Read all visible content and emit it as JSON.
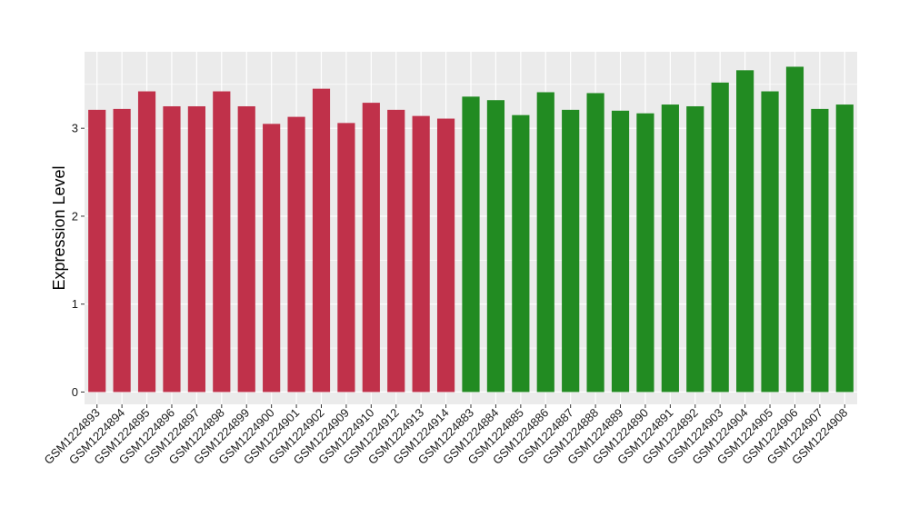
{
  "chart_data": {
    "type": "bar",
    "title": "",
    "xlabel": "",
    "ylabel": "Expression Level",
    "ylim": [
      -0.14,
      3.87
    ],
    "yticks": [
      0,
      1,
      2,
      3
    ],
    "grid": true,
    "legend": "none",
    "background_color": "#ebebeb",
    "grid_color": "#ffffff",
    "group_colors": {
      "red": "#c0314a",
      "green": "#228b22"
    },
    "categories": [
      "GSM1224893",
      "GSM1224894",
      "GSM1224895",
      "GSM1224896",
      "GSM1224897",
      "GSM1224898",
      "GSM1224899",
      "GSM1224900",
      "GSM1224901",
      "GSM1224902",
      "GSM1224909",
      "GSM1224910",
      "GSM1224912",
      "GSM1224913",
      "GSM1224914",
      "GSM1224883",
      "GSM1224884",
      "GSM1224885",
      "GSM1224886",
      "GSM1224887",
      "GSM1224888",
      "GSM1224889",
      "GSM1224890",
      "GSM1224891",
      "GSM1224892",
      "GSM1224903",
      "GSM1224904",
      "GSM1224905",
      "GSM1224906",
      "GSM1224907",
      "GSM1224908"
    ],
    "values": [
      3.21,
      3.22,
      3.42,
      3.25,
      3.25,
      3.42,
      3.25,
      3.05,
      3.13,
      3.45,
      3.06,
      3.29,
      3.21,
      3.14,
      3.11,
      3.36,
      3.32,
      3.15,
      3.41,
      3.21,
      3.4,
      3.2,
      3.17,
      3.27,
      3.25,
      3.52,
      3.66,
      3.42,
      3.7,
      3.22,
      3.27
    ],
    "bar_groups": [
      "red",
      "red",
      "red",
      "red",
      "red",
      "red",
      "red",
      "red",
      "red",
      "red",
      "red",
      "red",
      "red",
      "red",
      "red",
      "green",
      "green",
      "green",
      "green",
      "green",
      "green",
      "green",
      "green",
      "green",
      "green",
      "green",
      "green",
      "green",
      "green",
      "green",
      "green"
    ]
  }
}
